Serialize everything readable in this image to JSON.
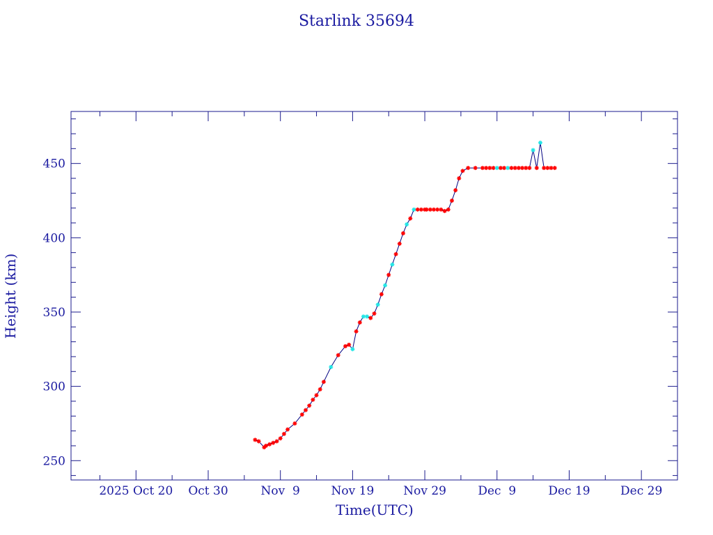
{
  "colors": {
    "axis": "#1a1a8c",
    "text": "#1a1aa0",
    "line": "#000080",
    "marker_primary": "#ff0000",
    "marker_secondary": "#22e6e6",
    "background": "#ffffff"
  },
  "chart_data": {
    "type": "line",
    "title": "Starlink 35694",
    "xlabel": "Time(UTC)",
    "ylabel": "Height (km)",
    "x_is_date": true,
    "xlim": [
      "2025-10-11",
      "2026-01-03"
    ],
    "ylim": [
      237,
      485
    ],
    "x_tick_labels": [
      {
        "date": "2025-10-20",
        "label": "2025 Oct 20"
      },
      {
        "date": "2025-10-30",
        "label": "Oct 30"
      },
      {
        "date": "2025-11-09",
        "label": "Nov  9"
      },
      {
        "date": "2025-11-19",
        "label": "Nov 19"
      },
      {
        "date": "2025-11-29",
        "label": "Nov 29"
      },
      {
        "date": "2025-12-09",
        "label": "Dec  9"
      },
      {
        "date": "2025-12-19",
        "label": "Dec 19"
      },
      {
        "date": "2025-12-29",
        "label": "Dec 29"
      }
    ],
    "y_ticks": [
      250,
      300,
      350,
      400,
      450
    ],
    "y_minor_step": 10,
    "x_minor_step_days": 5,
    "legend": "none",
    "grid": false,
    "series": [
      {
        "x": [
          "2025-11-05T12:00",
          "2025-11-06T00:00",
          "2025-11-06T18:00",
          "2025-11-07T00:00",
          "2025-11-07T12:00",
          "2025-11-08T00:00",
          "2025-11-08T12:00",
          "2025-11-09T00:00",
          "2025-11-09T12:00",
          "2025-11-10T00:00",
          "2025-11-11T00:00",
          "2025-11-12T00:00",
          "2025-11-12T12:00",
          "2025-11-13T00:00",
          "2025-11-13T12:00",
          "2025-11-14T00:00",
          "2025-11-14T12:00",
          "2025-11-15T00:00",
          "2025-11-16T00:00",
          "2025-11-17T00:00",
          "2025-11-18T00:00",
          "2025-11-18T12:00",
          "2025-11-19T00:00",
          "2025-11-19T12:00",
          "2025-11-20T00:00",
          "2025-11-20T12:00",
          "2025-11-21T00:00",
          "2025-11-21T12:00",
          "2025-11-22T00:00",
          "2025-11-22T12:00",
          "2025-11-23T00:00",
          "2025-11-23T12:00",
          "2025-11-24T00:00",
          "2025-11-24T12:00",
          "2025-11-25T00:00",
          "2025-11-25T12:00",
          "2025-11-26T00:00",
          "2025-11-26T12:00",
          "2025-11-27T00:00",
          "2025-11-27T12:00",
          "2025-11-28T00:00",
          "2025-11-28T12:00",
          "2025-11-29T00:00",
          "2025-11-29T06:00",
          "2025-11-29T18:00",
          "2025-11-30T06:00",
          "2025-11-30T18:00",
          "2025-12-01T06:00",
          "2025-12-01T18:00",
          "2025-12-02T06:00",
          "2025-12-02T18:00",
          "2025-12-03T06:00",
          "2025-12-03T18:00",
          "2025-12-04T06:00",
          "2025-12-05T00:00",
          "2025-12-06T00:00",
          "2025-12-07T00:00",
          "2025-12-07T12:00",
          "2025-12-08T00:00",
          "2025-12-08T12:00",
          "2025-12-09T00:00",
          "2025-12-09T12:00",
          "2025-12-10T00:00",
          "2025-12-10T12:00",
          "2025-12-11T00:00",
          "2025-12-11T12:00",
          "2025-12-12T00:00",
          "2025-12-12T12:00",
          "2025-12-13T00:00",
          "2025-12-13T12:00",
          "2025-12-14T00:00",
          "2025-12-14T12:00",
          "2025-12-15T00:00",
          "2025-12-15T12:00",
          "2025-12-16T00:00",
          "2025-12-16T12:00",
          "2025-12-17T00:00"
        ],
        "y": [
          264,
          263,
          259,
          260,
          261,
          262,
          263,
          265,
          268,
          271,
          275,
          281,
          284,
          287,
          291,
          294,
          298,
          303,
          313,
          321,
          327,
          328,
          325,
          337,
          343,
          347,
          347,
          346,
          349,
          355,
          362,
          368,
          375,
          382,
          389,
          396,
          403,
          409,
          413,
          419,
          419,
          419,
          419,
          419,
          419,
          419,
          419,
          419,
          418,
          419,
          425,
          432,
          440,
          445,
          447,
          447,
          447,
          447,
          447,
          447,
          447,
          447,
          447,
          447,
          447,
          447,
          447,
          447,
          447,
          447,
          459,
          447,
          464,
          447,
          447,
          447,
          447
        ],
        "marker_color_key": [
          "p",
          "p",
          "p",
          "p",
          "p",
          "p",
          "p",
          "p",
          "p",
          "p",
          "p",
          "p",
          "p",
          "p",
          "p",
          "p",
          "p",
          "p",
          "s",
          "p",
          "p",
          "p",
          "s",
          "p",
          "p",
          "s",
          "s",
          "p",
          "p",
          "s",
          "p",
          "s",
          "p",
          "s",
          "p",
          "p",
          "p",
          "s",
          "p",
          "s",
          "p",
          "p",
          "p",
          "p",
          "p",
          "p",
          "p",
          "p",
          "p",
          "p",
          "p",
          "p",
          "p",
          "p",
          "p",
          "p",
          "p",
          "p",
          "p",
          "p",
          "s",
          "p",
          "p",
          "s",
          "p",
          "p",
          "p",
          "p",
          "p",
          "p",
          "s",
          "p",
          "s",
          "p",
          "p",
          "p",
          "p"
        ]
      }
    ]
  }
}
